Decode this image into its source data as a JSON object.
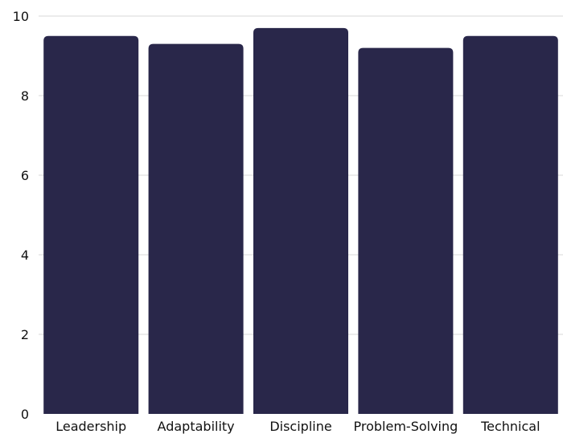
{
  "chart_data": {
    "type": "bar",
    "categories": [
      "Leadership",
      "Adaptability",
      "Discipline",
      "Problem-Solving",
      "Technical"
    ],
    "values": [
      9.5,
      9.3,
      9.7,
      9.2,
      9.5
    ],
    "ylim": [
      0,
      10
    ],
    "yticks": [
      0,
      2,
      4,
      6,
      8,
      10
    ],
    "grid": true,
    "bar_color": "#29274a"
  }
}
